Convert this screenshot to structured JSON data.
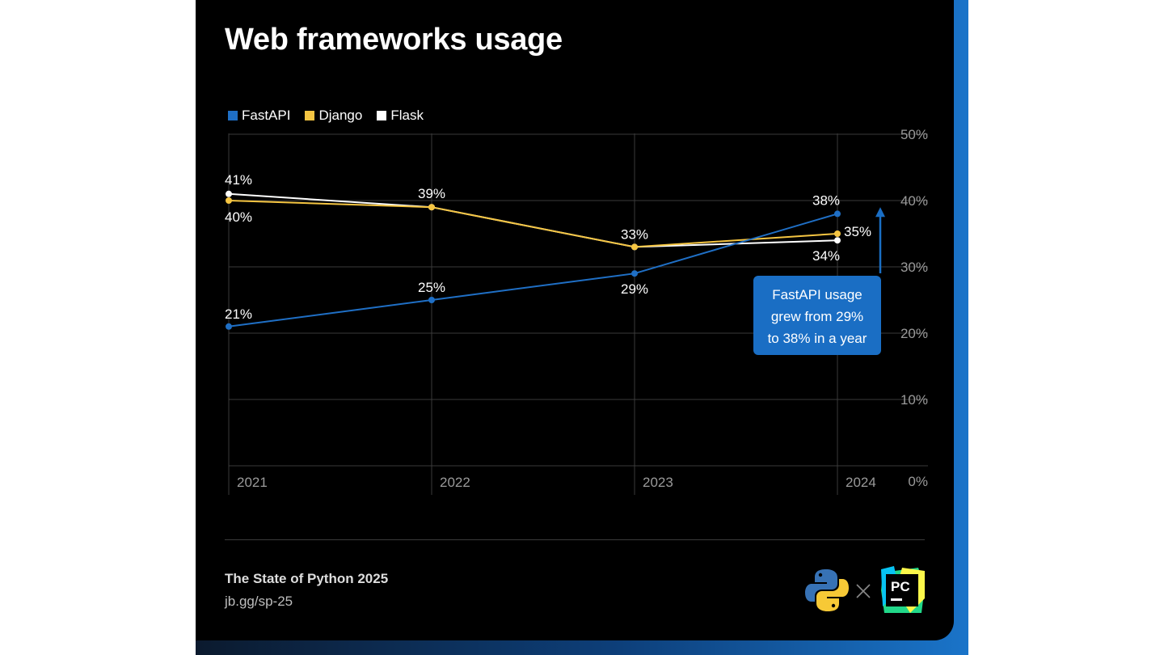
{
  "colors": {
    "fastapi": "#1f6fc5",
    "django": "#f5c542",
    "flask": "#ffffff",
    "grid": "#3a3a3a",
    "tick": "#9a9a9a",
    "callout_bg": "#1a6ec4"
  },
  "title": "Web frameworks usage",
  "legend": [
    {
      "label": "FastAPI",
      "color": "#1f6fc5"
    },
    {
      "label": "Django",
      "color": "#f5c542"
    },
    {
      "label": "Flask",
      "color": "#ffffff"
    }
  ],
  "chart_data": {
    "type": "line",
    "title": "Web frameworks usage",
    "x": [
      "2021",
      "2022",
      "2023",
      "2024"
    ],
    "xlabel": "",
    "ylabel": "",
    "ylim": [
      0,
      50
    ],
    "yticks": [
      "0%",
      "10%",
      "20%",
      "30%",
      "40%",
      "50%"
    ],
    "grid": true,
    "legend_position": "top-left",
    "series": [
      {
        "name": "FastAPI",
        "values": [
          21,
          25,
          29,
          38
        ],
        "labels": [
          "21%",
          "25%",
          "29%",
          "38%"
        ]
      },
      {
        "name": "Django",
        "values": [
          40,
          39,
          33,
          35
        ],
        "labels": [
          "40%",
          "39%",
          "33%",
          "35%"
        ]
      },
      {
        "name": "Flask",
        "values": [
          41,
          39,
          33,
          34
        ],
        "labels": [
          "41%",
          "",
          "",
          "34%"
        ]
      }
    ],
    "annotation": {
      "lines": [
        "FastAPI usage",
        "grew from 29%",
        "to 38% in a year"
      ],
      "arrow_from": 30,
      "arrow_to": 38.5
    }
  },
  "footer": {
    "title": "The State of Python 2025",
    "url": "jb.gg/sp-25"
  },
  "logos": {
    "python_icon": "python-logo-icon",
    "times_icon": "times-icon",
    "pycharm_icon": "pycharm-logo-icon",
    "pycharm_text": "PC"
  }
}
